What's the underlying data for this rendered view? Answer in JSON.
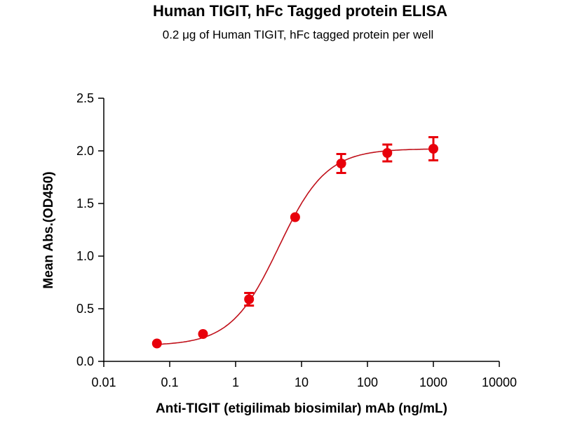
{
  "chart_data": {
    "type": "scatter",
    "title": "Human TIGIT, hFc Tagged protein ELISA",
    "subtitle": "0.2 μg of Human TIGIT, hFc tagged protein per well",
    "xlabel": "Anti-TIGIT (etigilimab biosimilar) mAb (ng/mL)",
    "ylabel": "Mean Abs.(OD450)",
    "xscale": "log",
    "xlim": [
      0.01,
      10000
    ],
    "ylim": [
      0,
      2.5
    ],
    "xticks": [
      "0.01",
      "0.1",
      "1",
      "10",
      "100",
      "1000",
      "10000"
    ],
    "xtick_values": [
      0.01,
      0.1,
      1,
      10,
      100,
      1000,
      10000
    ],
    "yticks": [
      "0.0",
      "0.5",
      "1.0",
      "1.5",
      "2.0",
      "2.5"
    ],
    "ytick_values": [
      0,
      0.5,
      1.0,
      1.5,
      2.0,
      2.5
    ],
    "grid": false,
    "color": "#e8000b",
    "curve_color": "#c0101a",
    "series": [
      {
        "name": "Anti-TIGIT mAb",
        "x": [
          0.064,
          0.32,
          1.6,
          8,
          40,
          200,
          1000
        ],
        "y": [
          0.17,
          0.26,
          0.59,
          1.37,
          1.88,
          1.98,
          2.02
        ],
        "error": [
          0.02,
          0.02,
          0.06,
          0.02,
          0.09,
          0.08,
          0.11
        ]
      }
    ],
    "fit": {
      "model": "4PL",
      "bottom": 0.15,
      "top": 2.02,
      "ec50": 4.5,
      "hill": 1.2
    }
  }
}
